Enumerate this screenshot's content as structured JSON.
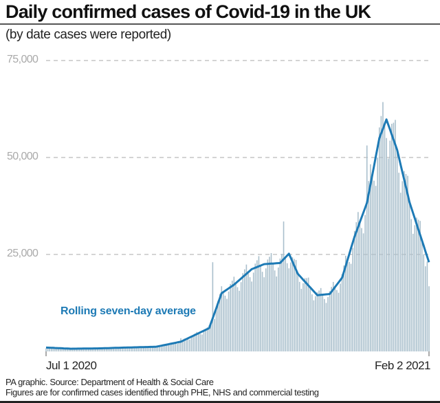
{
  "header": {
    "title": "Daily confirmed cases of Covid-19 in the UK",
    "subtitle": "(by date cases were reported)"
  },
  "axis": {
    "y_ticks": [
      "75,000",
      "50,000",
      "25,000"
    ],
    "x_start": "Jul 1 2020",
    "x_end": "Feb 2 2021"
  },
  "annotation": "Rolling seven-day average",
  "footer": {
    "source": "PA graphic. Source: Department of Health & Social Care",
    "note": "Figures are for confirmed cases identified through PHE, NHS and commercial testing"
  },
  "colors": {
    "bar": "#a9bfcc",
    "line": "#1d7ab5",
    "grid": "#aaaaaa"
  },
  "chart_data": {
    "type": "bar",
    "title": "Daily confirmed cases of Covid-19 in the UK",
    "subtitle": "(by date cases were reported)",
    "xlabel": "",
    "ylabel": "",
    "x_range": [
      "2020-07-01",
      "2021-02-02"
    ],
    "ylim": [
      0,
      75000
    ],
    "y_ticks": [
      25000,
      50000,
      75000
    ],
    "grid": "horizontal dashed",
    "series": [
      {
        "name": "Daily confirmed cases",
        "type": "bar",
        "note": "approximate weekly-sampled values read from chart",
        "x": [
          "Jul 1",
          "Jul 15",
          "Aug 1",
          "Aug 15",
          "Sep 1",
          "Sep 15",
          "Oct 1",
          "Oct 3",
          "Oct 15",
          "Nov 1",
          "Nov 12",
          "Nov 15",
          "Dec 1",
          "Dec 15",
          "Dec 29",
          "Jan 1",
          "Jan 8",
          "Jan 15",
          "Jan 22",
          "Feb 2"
        ],
        "values": [
          800,
          600,
          800,
          1000,
          1300,
          3400,
          7100,
          23000,
          18900,
          23300,
          33500,
          24900,
          13400,
          18500,
          53100,
          53300,
          68000,
          48700,
          40200,
          16800
        ]
      },
      {
        "name": "Rolling seven-day average",
        "type": "line",
        "x": [
          "Jul 1",
          "Jul 15",
          "Aug 1",
          "Aug 15",
          "Sep 1",
          "Sep 15",
          "Oct 1",
          "Oct 8",
          "Oct 15",
          "Oct 25",
          "Nov 1",
          "Nov 10",
          "Nov 15",
          "Nov 20",
          "Dec 1",
          "Dec 8",
          "Dec 15",
          "Dec 22",
          "Dec 29",
          "Jan 5",
          "Jan 9",
          "Jan 15",
          "Jan 22",
          "Feb 2"
        ],
        "values": [
          1000,
          700,
          800,
          1000,
          1200,
          2500,
          6000,
          15000,
          17200,
          21200,
          22500,
          22800,
          25200,
          20000,
          14500,
          14800,
          19000,
          29600,
          38300,
          55000,
          59800,
          52000,
          38500,
          23000
        ]
      }
    ]
  }
}
